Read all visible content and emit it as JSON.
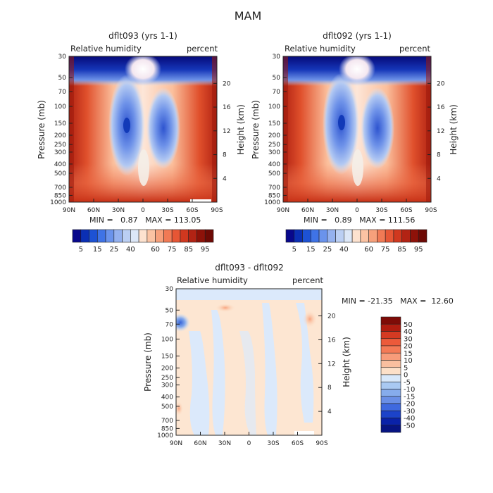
{
  "figure_title": "MAM",
  "chart_data": [
    {
      "type": "heatmap",
      "id": "panel1",
      "title": "dflt093 (yrs 1-1)",
      "left_label": "Relative humidity",
      "right_label": "percent",
      "ylabel": "Pressure (mb)",
      "y2label": "Height (km)",
      "xticks": [
        "90N",
        "60N",
        "30N",
        "0",
        "30S",
        "60S",
        "90S"
      ],
      "yticks": [
        "30",
        "50",
        "70",
        "100",
        "150",
        "200",
        "250",
        "300",
        "400",
        "500",
        "700",
        "850",
        "1000"
      ],
      "y2ticks": [
        "20",
        "16",
        "12",
        "8",
        "4"
      ],
      "stats": "MIN =   0.87   MAX = 113.05",
      "min": 0.87,
      "max": 113.05
    },
    {
      "type": "heatmap",
      "id": "panel2",
      "title": "dflt092 (yrs 1-1)",
      "left_label": "Relative humidity",
      "right_label": "percent",
      "ylabel": "Pressure (mb)",
      "y2label": "Height (km)",
      "xticks": [
        "90N",
        "60N",
        "30N",
        "0",
        "30S",
        "60S",
        "90S"
      ],
      "yticks": [
        "30",
        "50",
        "70",
        "100",
        "150",
        "200",
        "250",
        "300",
        "400",
        "500",
        "700",
        "850",
        "1000"
      ],
      "y2ticks": [
        "20",
        "16",
        "12",
        "8",
        "4"
      ],
      "stats": "MIN =   0.89   MAX = 111.56",
      "min": 0.89,
      "max": 111.56
    },
    {
      "type": "heatmap",
      "id": "diff",
      "title": "dflt093 - dflt092",
      "left_label": "Relative humidity",
      "right_label": "percent",
      "ylabel": "Pressure (mb)",
      "y2label": "Height (km)",
      "xticks": [
        "90N",
        "60N",
        "30N",
        "0",
        "30S",
        "60S",
        "90S"
      ],
      "yticks": [
        "30",
        "50",
        "70",
        "100",
        "150",
        "200",
        "250",
        "300",
        "400",
        "500",
        "700",
        "850",
        "1000"
      ],
      "y2ticks": [
        "20",
        "16",
        "12",
        "8",
        "4"
      ],
      "stats": "MIN = -21.35   MAX =  12.60",
      "min": -21.35,
      "max": 12.6
    }
  ],
  "colorbar_abs": {
    "labels": [
      "5",
      "15",
      "25",
      "40",
      "60",
      "75",
      "85",
      "95"
    ],
    "colors": [
      "#08088c",
      "#0b2fb4",
      "#1d52d4",
      "#3f73e6",
      "#6a93ec",
      "#94b1ef",
      "#bbcff3",
      "#dce7f7",
      "#fde2cf",
      "#fbc3a3",
      "#f7a07b",
      "#f17a55",
      "#e65635",
      "#d0381f",
      "#b22314",
      "#8e1209",
      "#6e0a05"
    ]
  },
  "colorbar_diff": {
    "labels": [
      "50",
      "40",
      "30",
      "20",
      "15",
      "10",
      "5",
      "0",
      "-5",
      "-10",
      "-15",
      "-20",
      "-30",
      "-40",
      "-50"
    ],
    "colors": [
      "#7e0c07",
      "#b01d10",
      "#d53a22",
      "#ec5a3a",
      "#f47a56",
      "#f89c7a",
      "#fabf9f",
      "#fde0c8",
      "#d8e8fa",
      "#a9c9f2",
      "#86acec",
      "#6a8fe6",
      "#3f69df",
      "#1c43c9",
      "#0a22a8",
      "#071482"
    ]
  }
}
